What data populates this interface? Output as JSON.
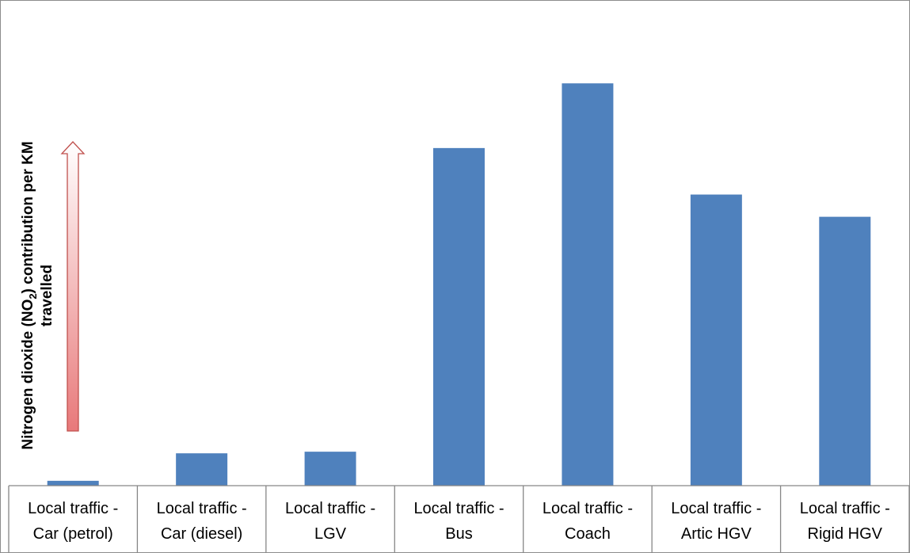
{
  "chart_data": {
    "type": "bar",
    "categories": [
      [
        "Local traffic -",
        "Car (petrol)"
      ],
      [
        "Local traffic -",
        "Car (diesel)"
      ],
      [
        "Local traffic -",
        "LGV"
      ],
      [
        "Local traffic -",
        "Bus"
      ],
      [
        "Local traffic -",
        "Coach"
      ],
      [
        "Local traffic -",
        "Artic HGV"
      ],
      [
        "Local traffic -",
        "Rigid HGV"
      ]
    ],
    "values": [
      1.2,
      8.0,
      8.4,
      83.5,
      99.5,
      72.0,
      66.5
    ],
    "ylim": [
      0,
      116
    ],
    "ylabel": {
      "line1_prefix": "Nitrogen dioxide (NO",
      "line1_sub": "2",
      "line1_suffix": ") contribution per KM",
      "line2": "travelled"
    },
    "bar_color": "#4f81bd",
    "arrow": {
      "fill_top": "#ffffff",
      "fill_bottom": "#e8797a",
      "stroke": "#c0504d",
      "meaning": "increasing"
    },
    "grid": false,
    "legend": "none"
  }
}
